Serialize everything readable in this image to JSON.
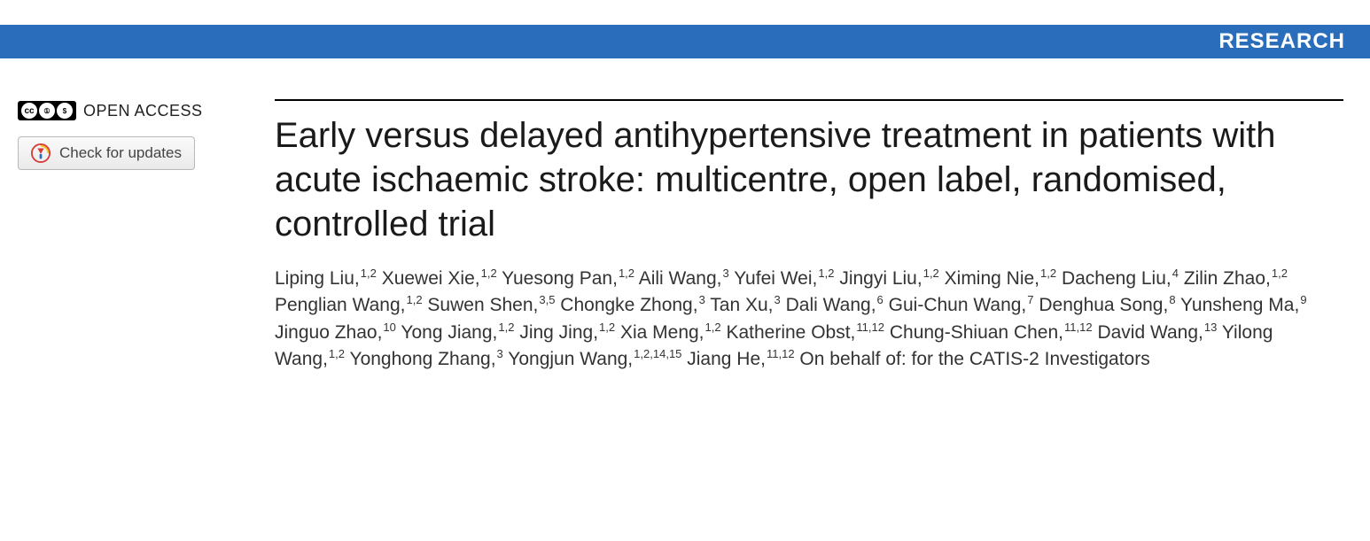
{
  "colors": {
    "banner_bg": "#2a6ebb",
    "banner_text": "#ffffff",
    "title_text": "#1a1a1a",
    "body_text": "#333333",
    "badge_bg": "#000000",
    "button_border": "#b8b8b8"
  },
  "banner": {
    "label": "RESEARCH"
  },
  "sidebar": {
    "cc_glyphs": [
      "cc",
      "①",
      "$"
    ],
    "open_access": "OPEN ACCESS",
    "updates_label": "Check for updates"
  },
  "article": {
    "title": "Early versus delayed antihypertensive treatment in patients with acute ischaemic stroke: multicentre, open label, randomised, controlled trial",
    "authors": [
      {
        "name": "Liping Liu",
        "affil": "1,2"
      },
      {
        "name": "Xuewei Xie",
        "affil": "1,2"
      },
      {
        "name": "Yuesong Pan",
        "affil": "1,2"
      },
      {
        "name": "Aili Wang",
        "affil": "3"
      },
      {
        "name": "Yufei Wei",
        "affil": "1,2"
      },
      {
        "name": "Jingyi Liu",
        "affil": "1,2"
      },
      {
        "name": "Ximing Nie",
        "affil": "1,2"
      },
      {
        "name": "Dacheng Liu",
        "affil": "4"
      },
      {
        "name": "Zilin Zhao",
        "affil": "1,2"
      },
      {
        "name": "Penglian Wang",
        "affil": "1,2"
      },
      {
        "name": "Suwen Shen",
        "affil": "3,5"
      },
      {
        "name": "Chongke Zhong",
        "affil": "3"
      },
      {
        "name": "Tan Xu",
        "affil": "3"
      },
      {
        "name": "Dali Wang",
        "affil": "6"
      },
      {
        "name": "Gui-Chun Wang",
        "affil": "7"
      },
      {
        "name": "Denghua Song",
        "affil": "8"
      },
      {
        "name": "Yunsheng Ma",
        "affil": "9"
      },
      {
        "name": "Jinguo Zhao",
        "affil": "10"
      },
      {
        "name": "Yong Jiang",
        "affil": "1,2"
      },
      {
        "name": "Jing Jing",
        "affil": "1,2"
      },
      {
        "name": "Xia Meng",
        "affil": "1,2"
      },
      {
        "name": "Katherine Obst",
        "affil": "11,12"
      },
      {
        "name": "Chung-Shiuan Chen",
        "affil": "11,12"
      },
      {
        "name": "David Wang",
        "affil": "13"
      },
      {
        "name": "Yilong Wang",
        "affil": "1,2"
      },
      {
        "name": "Yonghong Zhang",
        "affil": "3"
      },
      {
        "name": "Yongjun Wang",
        "affil": "1,2,14,15"
      },
      {
        "name": "Jiang He",
        "affil": "11,12"
      }
    ],
    "on_behalf": "On behalf of: for the CATIS-2 Investigators"
  }
}
